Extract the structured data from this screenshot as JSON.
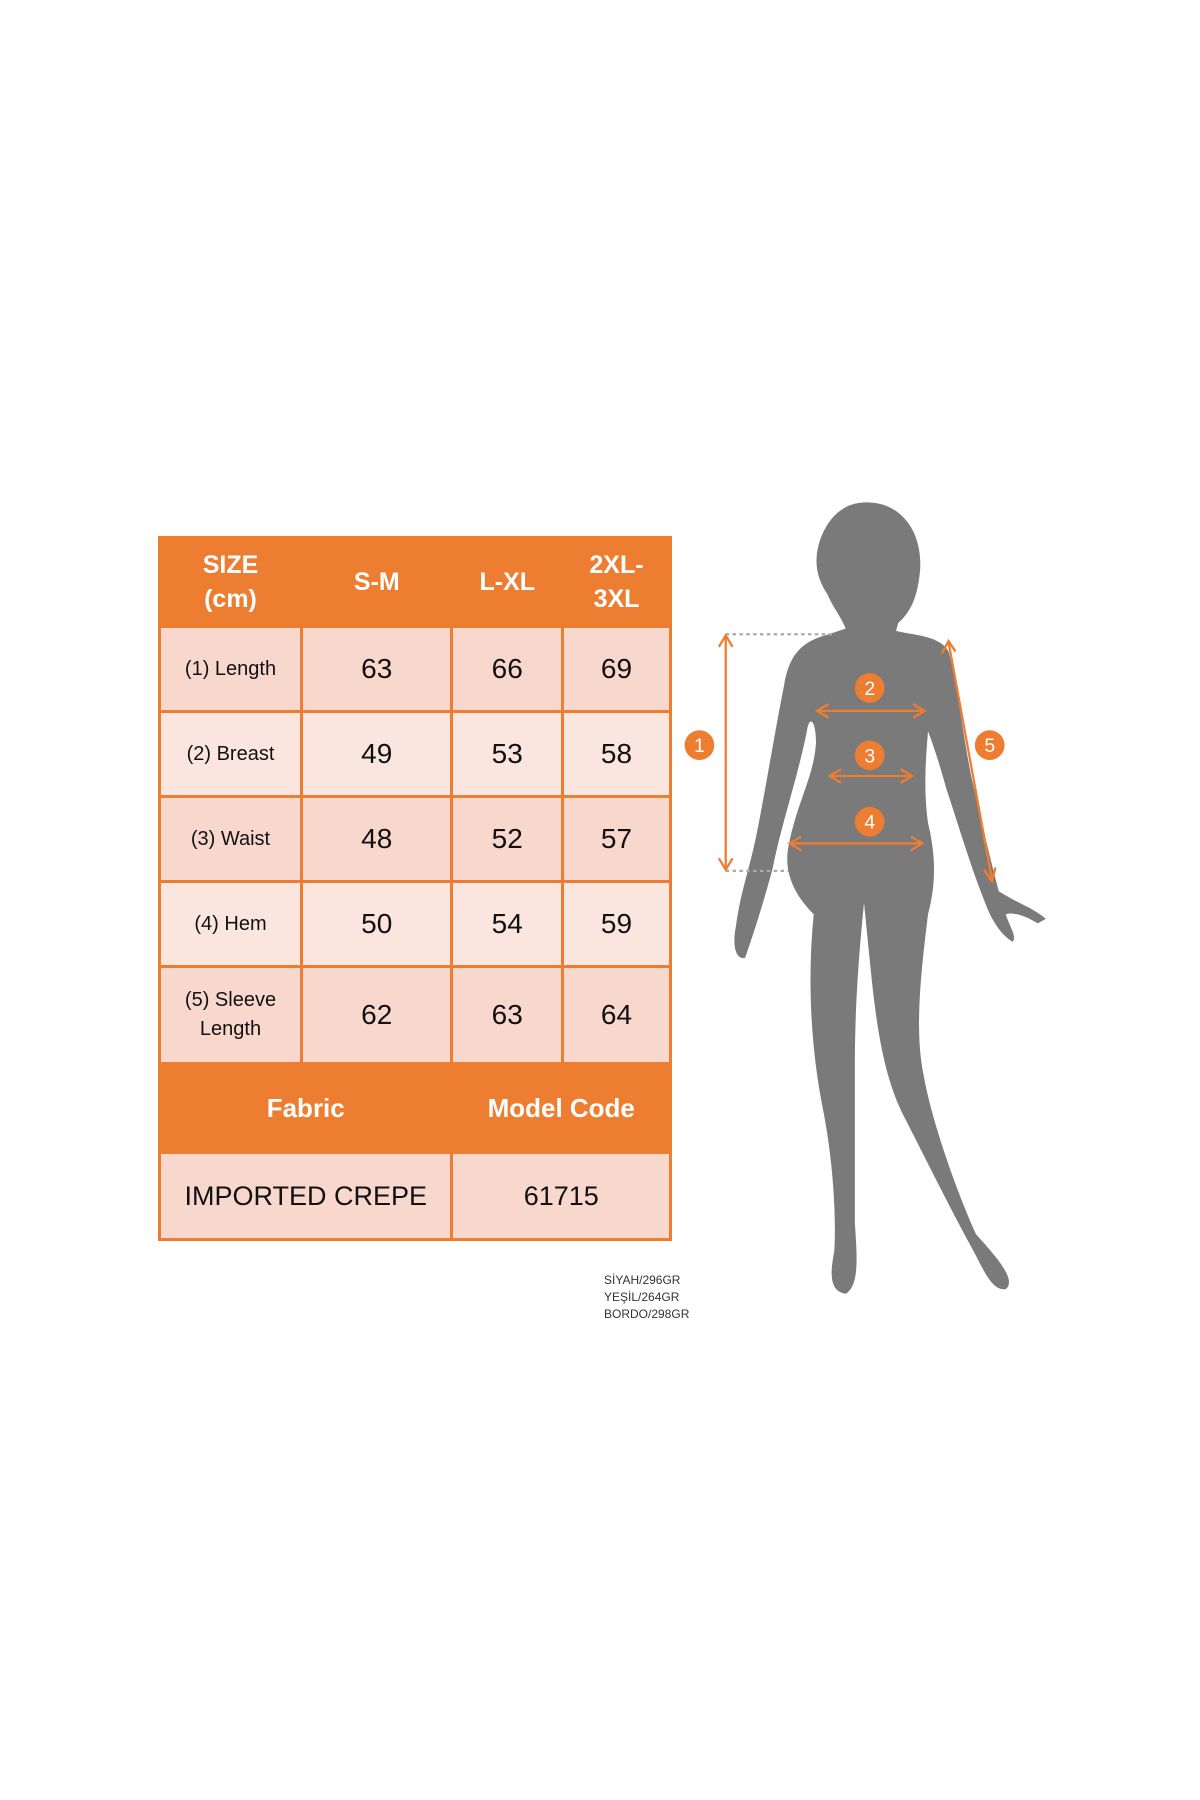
{
  "table": {
    "header": [
      "SIZE\n(cm)",
      "S-M",
      "L-XL",
      "2XL-\n3XL"
    ],
    "header_lines": {
      "size": [
        "SIZE",
        "(cm)"
      ],
      "xxl": [
        "2XL-",
        "3XL"
      ]
    },
    "rows": [
      {
        "label": "(1) Length",
        "values": [
          "63",
          "66",
          "69"
        ]
      },
      {
        "label": "(2) Breast",
        "values": [
          "49",
          "53",
          "58"
        ]
      },
      {
        "label": "(3) Waist",
        "values": [
          "48",
          "52",
          "57"
        ]
      },
      {
        "label": "(4) Hem",
        "values": [
          "50",
          "54",
          "59"
        ]
      },
      {
        "label": "(5) Sleeve Length",
        "label_lines": [
          "(5) Sleeve",
          "Length"
        ],
        "values": [
          "62",
          "63",
          "64"
        ]
      }
    ],
    "footer_headers": [
      "Fabric",
      "Model Code"
    ],
    "footer_values": [
      "IMPORTED CREPE",
      "61715"
    ]
  },
  "weights": [
    "SİYAH/296GR",
    "YEŞİL/264GR",
    "BORDO/298GR"
  ],
  "figure": {
    "markers": [
      "1",
      "2",
      "3",
      "4",
      "5"
    ]
  },
  "colors": {
    "accent": "#ed7d31",
    "cell_light": "#fbe6df",
    "cell": "#f8d7cd",
    "silhouette": "#7a7a7a"
  }
}
